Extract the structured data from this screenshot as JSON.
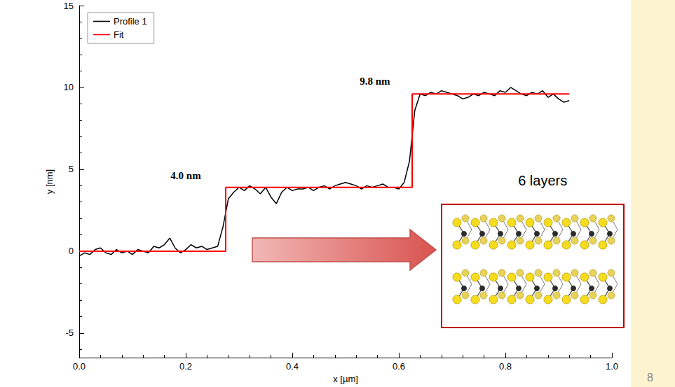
{
  "chart_data": {
    "type": "line",
    "x": [
      0,
      0.01,
      0.02,
      0.03,
      0.04,
      0.05,
      0.06,
      0.07,
      0.08,
      0.09,
      0.1,
      0.11,
      0.12,
      0.13,
      0.14,
      0.15,
      0.16,
      0.17,
      0.18,
      0.19,
      0.2,
      0.21,
      0.22,
      0.23,
      0.24,
      0.25,
      0.26,
      0.27,
      0.28,
      0.29,
      0.3,
      0.31,
      0.32,
      0.33,
      0.34,
      0.35,
      0.36,
      0.37,
      0.38,
      0.39,
      0.4,
      0.41,
      0.42,
      0.43,
      0.44,
      0.45,
      0.46,
      0.47,
      0.48,
      0.49,
      0.5,
      0.51,
      0.52,
      0.53,
      0.54,
      0.55,
      0.56,
      0.57,
      0.58,
      0.59,
      0.6,
      0.61,
      0.62,
      0.63,
      0.64,
      0.65,
      0.66,
      0.67,
      0.68,
      0.69,
      0.7,
      0.71,
      0.72,
      0.73,
      0.74,
      0.75,
      0.76,
      0.77,
      0.78,
      0.79,
      0.8,
      0.81,
      0.82,
      0.83,
      0.84,
      0.85,
      0.86,
      0.87,
      0.88,
      0.89,
      0.9,
      0.91,
      0.92
    ],
    "series": [
      {
        "name": "Profile 1",
        "color": "#000000",
        "type": "line",
        "values": [
          -0.3,
          -0.1,
          -0.2,
          0.1,
          0.2,
          -0.1,
          -0.2,
          0.1,
          -0.1,
          0.0,
          -0.2,
          0.1,
          0.0,
          -0.1,
          0.3,
          0.2,
          0.4,
          0.8,
          0.2,
          -0.1,
          0.1,
          0.4,
          0.2,
          0.3,
          0.1,
          0.2,
          0.3,
          1.5,
          3.2,
          3.6,
          3.9,
          3.7,
          4.0,
          3.8,
          3.5,
          3.9,
          3.3,
          2.9,
          3.6,
          3.9,
          3.7,
          3.8,
          3.8,
          3.9,
          3.7,
          3.9,
          4.0,
          3.8,
          4.0,
          4.1,
          4.2,
          4.1,
          4.0,
          3.8,
          4.0,
          3.9,
          4.0,
          4.1,
          3.9,
          3.9,
          3.8,
          4.2,
          5.5,
          8.6,
          9.6,
          9.5,
          9.7,
          9.6,
          9.8,
          9.7,
          9.6,
          9.5,
          9.3,
          9.4,
          9.6,
          9.5,
          9.7,
          9.6,
          9.5,
          9.8,
          9.7,
          10.0,
          9.8,
          9.6,
          9.5,
          9.7,
          9.6,
          9.8,
          9.4,
          9.6,
          9.3,
          9.1,
          9.2
        ]
      },
      {
        "name": "Fit",
        "color": "#ff0000",
        "type": "step",
        "values": [
          0,
          0,
          0,
          0,
          0,
          0,
          0,
          0,
          0,
          0,
          0,
          0,
          0,
          0,
          0,
          0,
          0,
          0,
          0,
          0,
          0,
          0,
          0,
          0,
          0,
          0,
          0,
          0,
          3.9,
          3.9,
          3.9,
          3.9,
          3.9,
          3.9,
          3.9,
          3.9,
          3.9,
          3.9,
          3.9,
          3.9,
          3.9,
          3.9,
          3.9,
          3.9,
          3.9,
          3.9,
          3.9,
          3.9,
          3.9,
          3.9,
          3.9,
          3.9,
          3.9,
          3.9,
          3.9,
          3.9,
          3.9,
          3.9,
          3.9,
          3.9,
          3.9,
          3.9,
          3.9,
          9.6,
          9.6,
          9.6,
          9.6,
          9.6,
          9.6,
          9.6,
          9.6,
          9.6,
          9.6,
          9.6,
          9.6,
          9.6,
          9.6,
          9.6,
          9.6,
          9.6,
          9.6,
          9.6,
          9.6,
          9.6,
          9.6,
          9.6,
          9.6,
          9.6,
          9.6,
          9.6,
          9.6,
          9.6,
          9.6
        ]
      }
    ],
    "xlabel": "x [µm]",
    "ylabel": "y [nm]",
    "xlim": [
      0,
      1.0
    ],
    "xticks": [
      {
        "value": 0,
        "label": "0.0"
      },
      {
        "value": 0.2,
        "label": "0.2"
      },
      {
        "value": 0.4,
        "label": "0.4"
      },
      {
        "value": 0.6,
        "label": "0.6"
      },
      {
        "value": 0.8,
        "label": "0.8"
      },
      {
        "value": 1.0,
        "label": "1.0"
      }
    ],
    "ylim": [
      -6.5,
      15
    ],
    "yticks": [
      -5,
      0,
      5,
      10,
      15
    ],
    "legend": "upper left",
    "grid": false,
    "annotations": [
      {
        "text": "4.0 nm",
        "x": 0.2,
        "y": 4.6
      },
      {
        "text": "9.8 nm",
        "x": 0.555,
        "y": 10.4
      },
      {
        "text": "6 layers",
        "x": 0.87,
        "y": 4.3
      }
    ]
  },
  "slide_number": "8"
}
